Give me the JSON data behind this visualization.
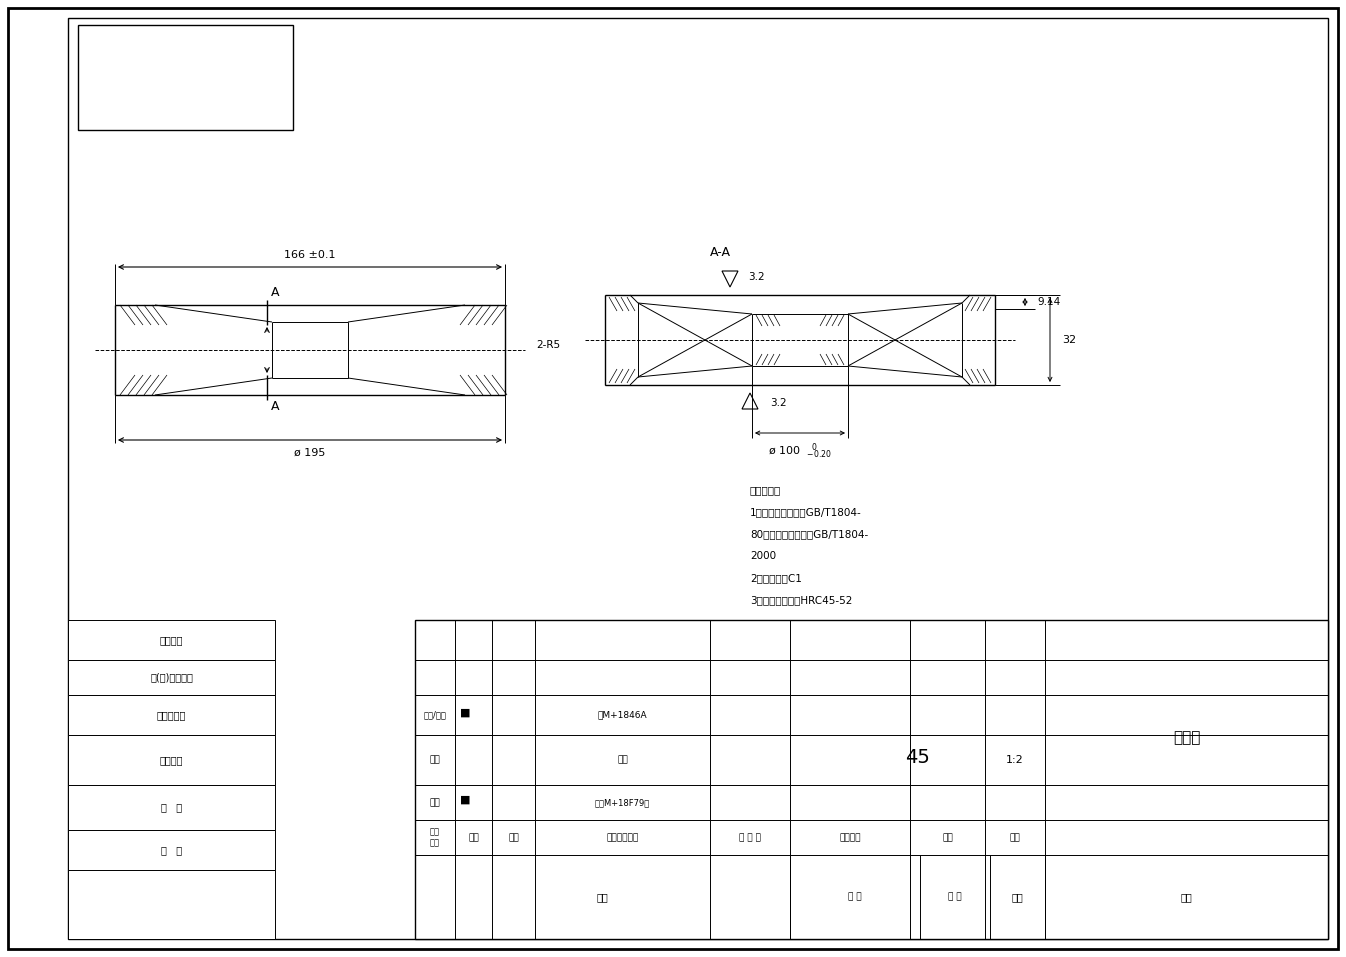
{
  "bg_color": "#ffffff",
  "line_color": "#000000",
  "fig_width": 13.46,
  "fig_height": 9.57,
  "tech_notes": [
    "技术要求：",
    "1、未注尺寸公差按GB/T1804-",
    "80，未注形状公差按GB/T1804-",
    "2000",
    "2、未注倒角C1",
    "3、材料淬火处理HRC45-52"
  ],
  "part_name": "定滑轮",
  "material": "45",
  "scale": "1:2",
  "left_labels": [
    "零件代号",
    "借(通)用件登记",
    "旧底图刻号",
    "底图刻号",
    "签   字",
    "日   期"
  ],
  "tbl_header_cols": [
    "阶段\n标记",
    "工数",
    "分区",
    "更改文件号名",
    "年 月 日",
    "阶段标记",
    "数量",
    "比例"
  ],
  "row_design": [
    "设计",
    "■",
    "审核M+18F79化",
    "1:2"
  ],
  "row_check": [
    "校核",
    "工具"
  ],
  "row_chief": [
    "主管/审核",
    "■",
    "上M+1846A"
  ],
  "row_approve": [
    "批准",
    "共 计   第 计   版本",
    "替代"
  ]
}
